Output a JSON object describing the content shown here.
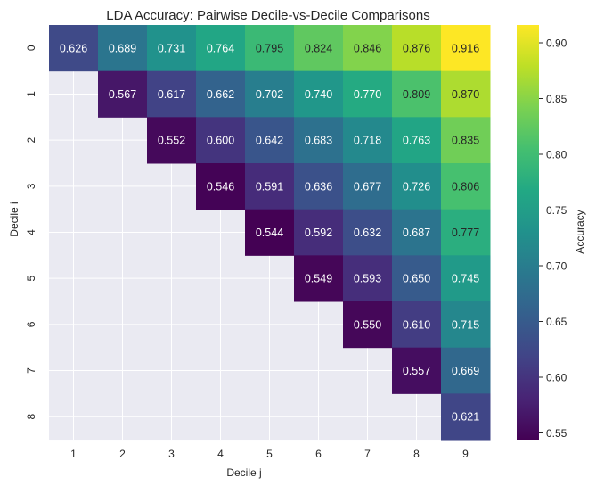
{
  "chart_data": {
    "type": "heatmap",
    "title": "LDA Accuracy: Pairwise Decile-vs-Decile Comparisons",
    "xlabel": "Decile j",
    "ylabel": "Decile i",
    "x_categories": [
      "1",
      "2",
      "3",
      "4",
      "5",
      "6",
      "7",
      "8",
      "9"
    ],
    "y_categories": [
      "0",
      "1",
      "2",
      "3",
      "4",
      "5",
      "6",
      "7",
      "8"
    ],
    "values": [
      [
        0.626,
        0.689,
        0.731,
        0.764,
        0.795,
        0.824,
        0.846,
        0.876,
        0.916
      ],
      [
        null,
        0.567,
        0.617,
        0.662,
        0.702,
        0.74,
        0.77,
        0.809,
        0.87
      ],
      [
        null,
        null,
        0.552,
        0.6,
        0.642,
        0.683,
        0.718,
        0.763,
        0.835
      ],
      [
        null,
        null,
        null,
        0.546,
        0.591,
        0.636,
        0.677,
        0.726,
        0.806
      ],
      [
        null,
        null,
        null,
        null,
        0.544,
        0.592,
        0.632,
        0.687,
        0.777
      ],
      [
        null,
        null,
        null,
        null,
        null,
        0.549,
        0.593,
        0.65,
        0.745
      ],
      [
        null,
        null,
        null,
        null,
        null,
        null,
        0.55,
        0.61,
        0.715
      ],
      [
        null,
        null,
        null,
        null,
        null,
        null,
        null,
        0.557,
        0.669
      ],
      [
        null,
        null,
        null,
        null,
        null,
        null,
        null,
        null,
        0.621
      ]
    ],
    "value_format": "0.000",
    "colormap": "viridis",
    "color_range": [
      0.544,
      0.916
    ],
    "colorbar": {
      "label": "Accuracy",
      "ticks": [
        "0.55",
        "0.60",
        "0.65",
        "0.70",
        "0.75",
        "0.80",
        "0.85",
        "0.90"
      ]
    },
    "grid": true,
    "background_color": "#eaeaf2",
    "grid_color": "#ffffff"
  }
}
